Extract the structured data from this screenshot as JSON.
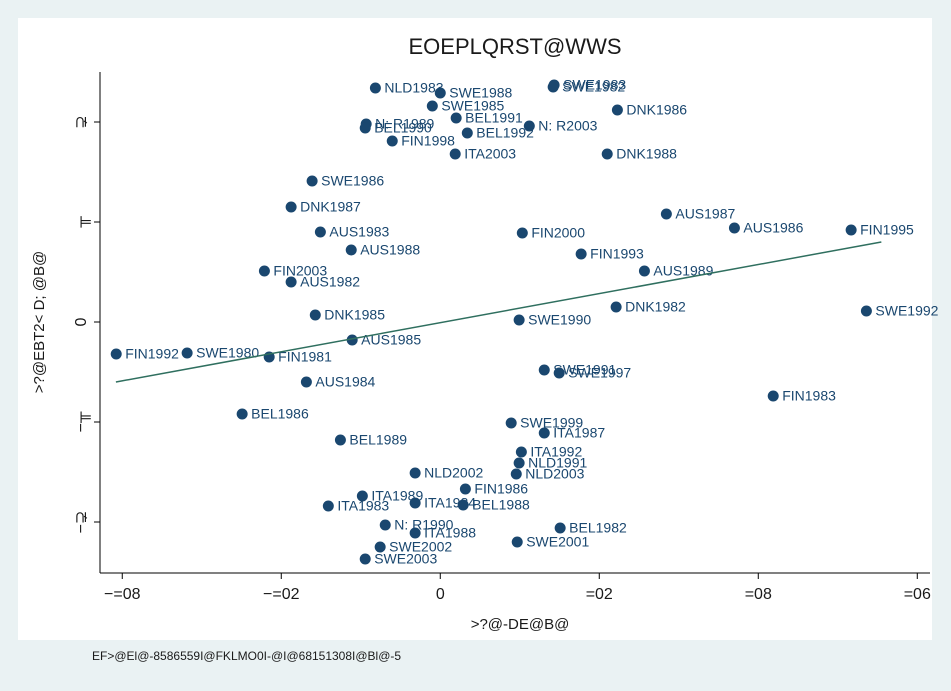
{
  "chart_data": {
    "type": "scatter",
    "title": "EOEPLQRST@WWS",
    "xlabel": ">?@-DE@B@",
    "ylabel": ">?@EBT2< D; @B@",
    "note": "EF>@El@-8586559I@FKLMO0I-@I@68151308I@Bl@-5",
    "color": "#1a476f",
    "xlim": [
      -0.107,
      0.154
    ],
    "ylim": [
      -2.51,
      2.5
    ],
    "xticks": [
      {
        "value": -0.1,
        "label": "−=08"
      },
      {
        "value": -0.05,
        "label": "−=02"
      },
      0,
      {
        "value": 0.05,
        "label": "=02"
      },
      {
        "value": 0.1,
        "label": "=08"
      },
      {
        "value": 0.15,
        "label": "=06"
      }
    ],
    "yticks": [
      {
        "value": 2,
        "label": "⊋"
      },
      {
        "value": 1,
        "label": "╥"
      },
      0,
      {
        "value": -1,
        "label": "−╥"
      },
      {
        "value": -2,
        "label": "−⊋"
      }
    ],
    "labels": [
      "NLD1983",
      "SWE1988",
      "SWE1982",
      "SWE1983",
      "SWE1985",
      "DNK1986",
      "BEL1991",
      "N: R1989",
      "BEL1990",
      "N: R2003",
      "BEL1992",
      "FIN1998",
      "ITA2003",
      "DNK1988",
      "SWE1986",
      "DNK1987",
      "AUS1987",
      "AUS1986",
      "FIN1995",
      "AUS1983",
      "FIN2000",
      "AUS1988",
      "FIN1993",
      "FIN2003",
      "AUS1989",
      "AUS1982",
      "DNK1982",
      "SWE1990",
      "SWE1992",
      "DNK1985",
      "FIN1992",
      "SWE1980",
      "FIN1981",
      "AUS1985",
      "AUS1984",
      "SWE1991",
      "SWE1997",
      "FIN1983",
      "BEL1986",
      "ITA1987",
      "SWE1999",
      "BEL1989",
      "ITA1992",
      "NLD1991",
      "NLD2003",
      "NLD2002",
      "FIN1986",
      "ITA1989",
      "ITA1983",
      "ITA1984",
      "BEL1988",
      "N: R1990",
      "ITA1988",
      "BEL1982",
      "SWE2001",
      "SWE2002",
      "SWE2003"
    ],
    "x": [
      -0.0204,
      0,
      0.0355,
      0.0358,
      -0.0025,
      0.0557,
      0.005,
      -0.0233,
      -0.0236,
      0.028,
      0.0085,
      -0.0151,
      0.0047,
      0.0525,
      -0.0403,
      -0.0469,
      0.0711,
      0.0925,
      0.1292,
      -0.0377,
      0.0258,
      -0.028,
      0.0443,
      -0.0553,
      0.0642,
      -0.0469,
      0.0553,
      0.0248,
      0.134,
      -0.0393,
      -0.1019,
      -0.0796,
      -0.0538,
      -0.0277,
      -0.0421,
      0.0327,
      0.0374,
      0.1047,
      -0.0623,
      0.0327,
      0.0223,
      -0.0314,
      0.0255,
      0.0248,
      0.0239,
      -0.0079,
      0.0079,
      -0.0245,
      -0.0352,
      -0.0079,
      0.0072,
      -0.0173,
      -0.0079,
      0.0377,
      0.0242,
      -0.0189,
      -0.0236
    ],
    "y": [
      2.34,
      2.29,
      2.35,
      2.37,
      2.16,
      2.12,
      2.04,
      1.98,
      1.94,
      1.96,
      1.89,
      1.81,
      1.68,
      1.68,
      1.41,
      1.15,
      1.08,
      0.94,
      0.92,
      0.9,
      0.89,
      0.72,
      0.68,
      0.51,
      0.51,
      0.4,
      0.15,
      0.02,
      0.11,
      0.07,
      -0.32,
      -0.31,
      -0.35,
      -0.18,
      -0.6,
      -0.48,
      -0.51,
      -0.74,
      -0.92,
      -1.11,
      -1.01,
      -1.18,
      -1.3,
      -1.41,
      -1.52,
      -1.51,
      -1.67,
      -1.74,
      -1.84,
      -1.81,
      -1.83,
      -2.03,
      -2.11,
      -2.06,
      -2.2,
      -2.25,
      -2.37
    ],
    "fit": {
      "x": [
        -0.102,
        0.1387
      ],
      "y": [
        -0.6,
        0.8
      ],
      "color": "#2f6f5f"
    }
  }
}
